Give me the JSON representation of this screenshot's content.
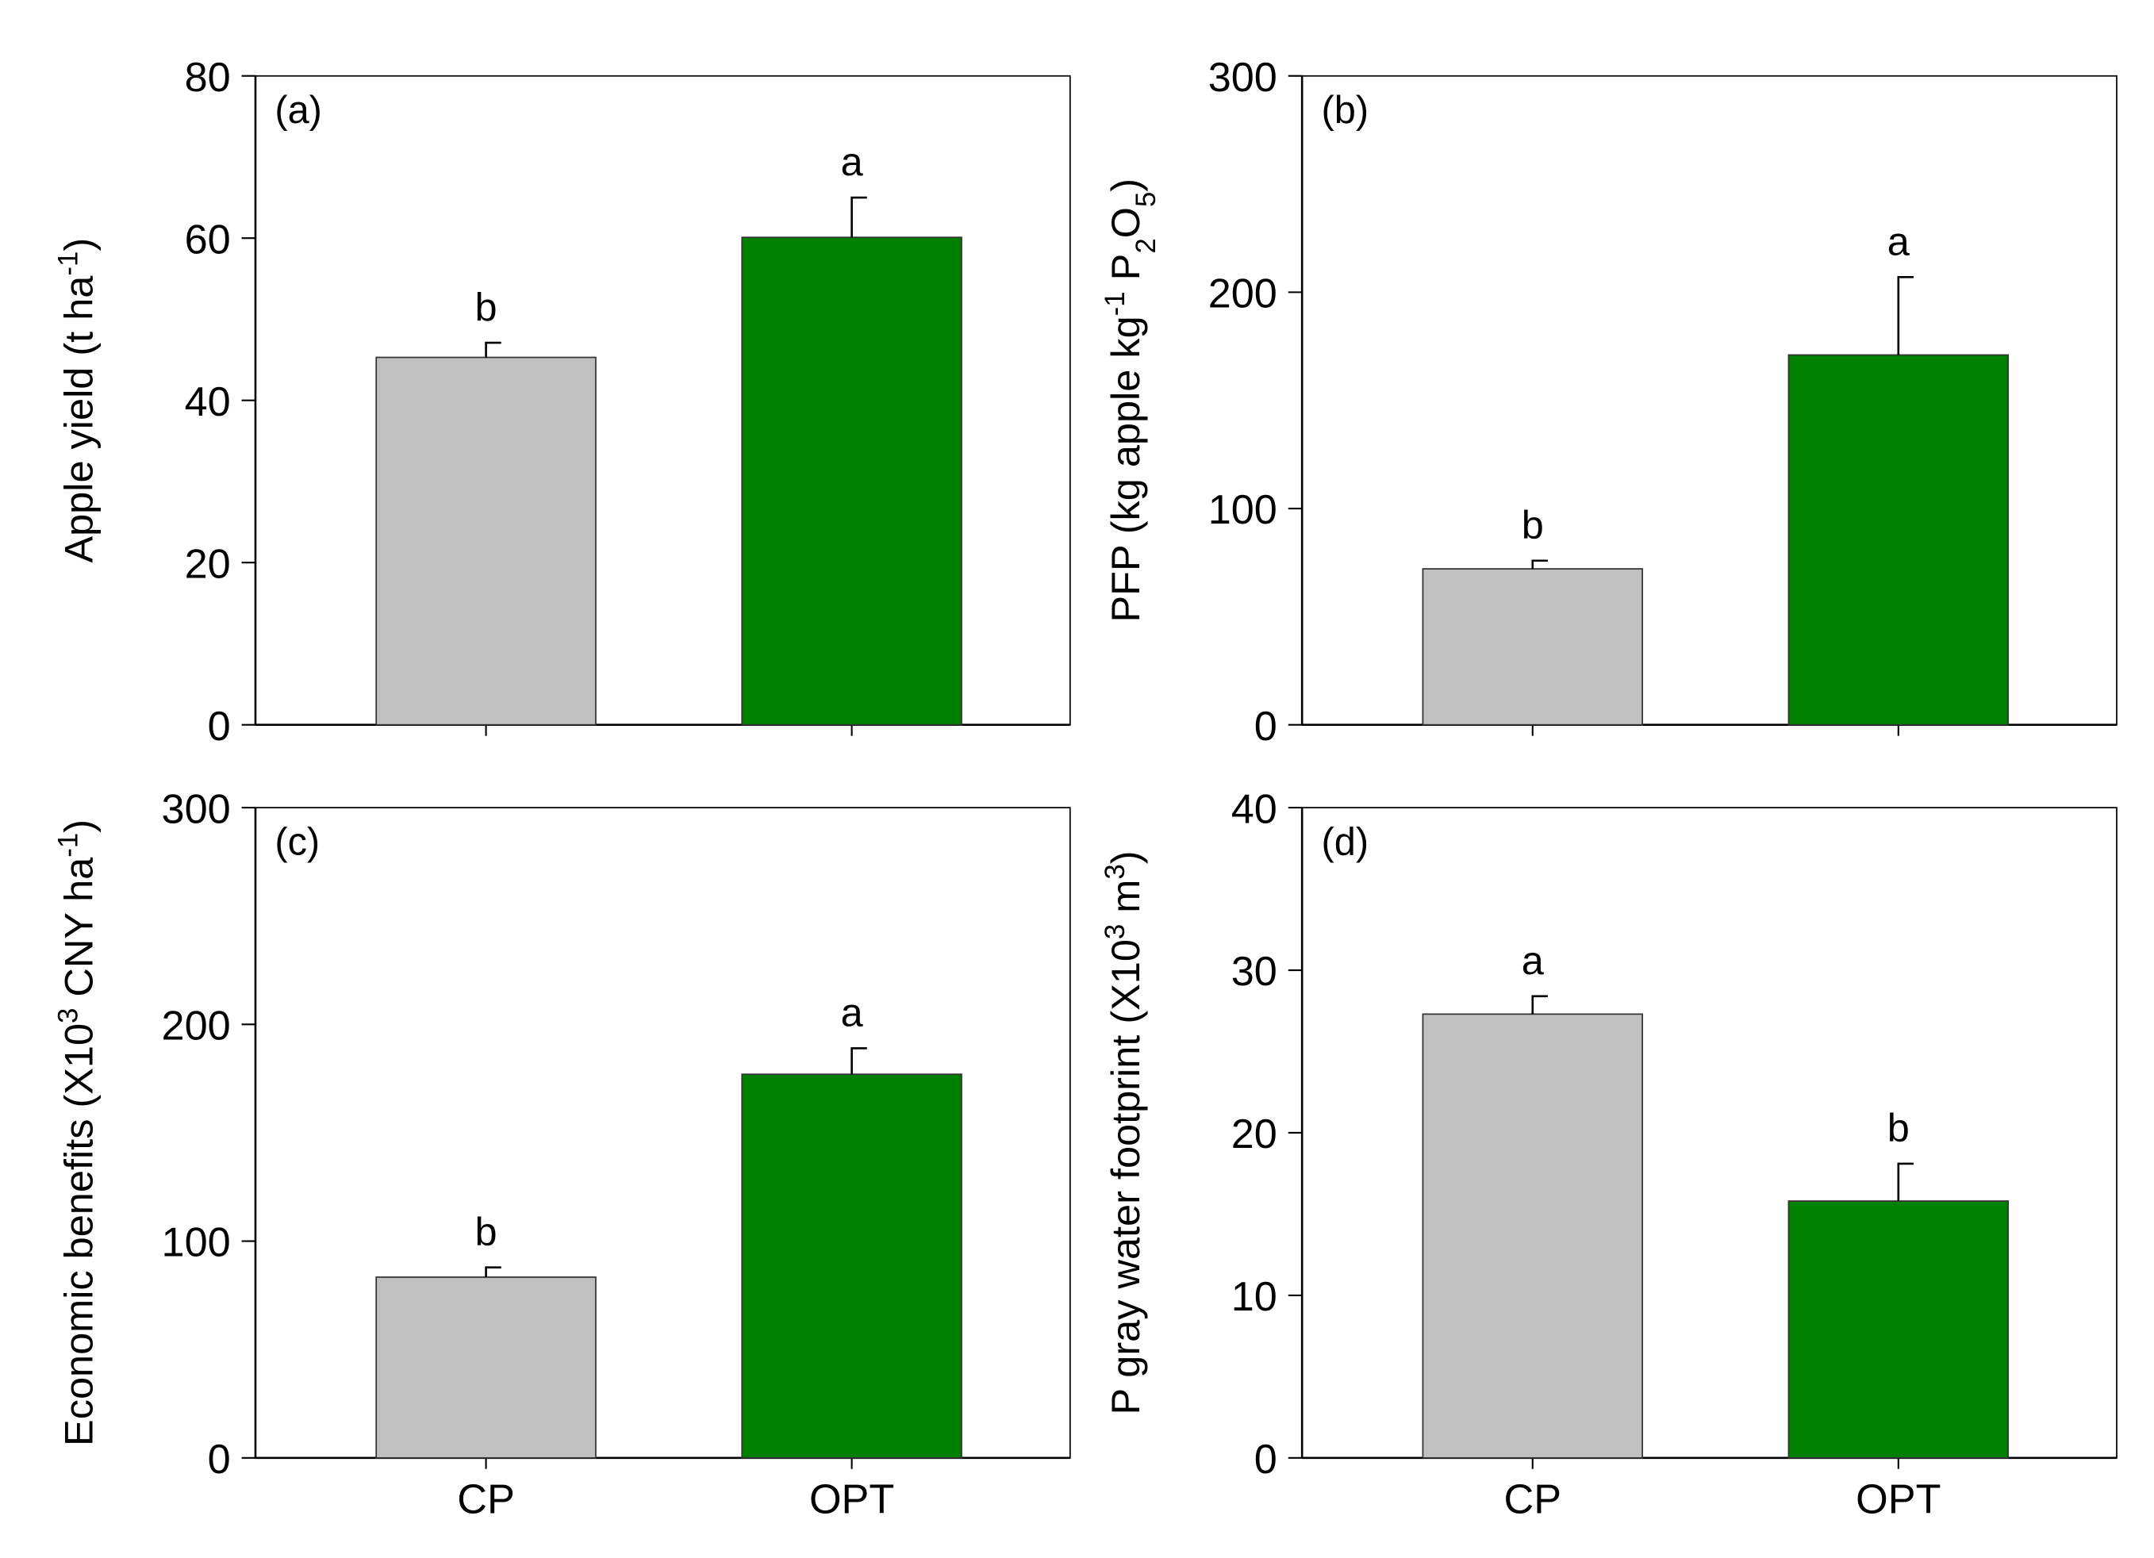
{
  "chart_data": [
    {
      "type": "bar",
      "panel_label": "(a)",
      "ylabel": [
        {
          "text": "Apple yield (t ha"
        },
        {
          "text": "-1",
          "shift": "sup"
        },
        {
          "text": ")"
        }
      ],
      "values": [
        45.3,
        60.1
      ],
      "errors": [
        1.8,
        4.9
      ],
      "annotations": [
        "b",
        "a"
      ],
      "colors": [
        "#c0c0c0",
        "#008000"
      ],
      "ylim": [
        0,
        80
      ],
      "yticks": [
        0,
        20,
        40,
        60,
        80
      ]
    },
    {
      "type": "bar",
      "panel_label": "(b)",
      "ylabel": [
        {
          "text": "PFP (kg apple kg"
        },
        {
          "text": "-1",
          "shift": "sup"
        },
        {
          "text": " P"
        },
        {
          "text": "2",
          "shift": "sub"
        },
        {
          "text": "O"
        },
        {
          "text": "5",
          "shift": "sub"
        },
        {
          "text": ")"
        }
      ],
      "values": [
        72.1,
        171
      ],
      "errors": [
        3.8,
        36
      ],
      "annotations": [
        "b",
        "a"
      ],
      "colors": [
        "#c0c0c0",
        "#008000"
      ],
      "ylim": [
        0,
        300
      ],
      "yticks": [
        0,
        100,
        200,
        300
      ]
    },
    {
      "type": "bar",
      "panel_label": "(c)",
      "ylabel": [
        {
          "text": "Economic benefits (X10"
        },
        {
          "text": "3",
          "shift": "sup"
        },
        {
          "text": " CNY ha"
        },
        {
          "text": "-1",
          "shift": "sup"
        },
        {
          "text": ")"
        }
      ],
      "categories": [
        "CP",
        "OPT"
      ],
      "values": [
        83.4,
        177
      ],
      "errors": [
        4.5,
        12
      ],
      "annotations": [
        "b",
        "a"
      ],
      "colors": [
        "#c0c0c0",
        "#008000"
      ],
      "ylim": [
        0,
        300
      ],
      "yticks": [
        0,
        100,
        200,
        300
      ]
    },
    {
      "type": "bar",
      "panel_label": "(d)",
      "ylabel": [
        {
          "text": "P gray water footprint (X10"
        },
        {
          "text": "3",
          "shift": "sup"
        },
        {
          "text": " m"
        },
        {
          "text": "3",
          "shift": "sup"
        },
        {
          "text": ")"
        }
      ],
      "categories": [
        "CP",
        "OPT"
      ],
      "values": [
        27.3,
        15.8
      ],
      "errors": [
        1.1,
        2.3
      ],
      "annotations": [
        "a",
        "b"
      ],
      "colors": [
        "#c0c0c0",
        "#008000"
      ],
      "ylim": [
        0,
        40
      ],
      "yticks": [
        0,
        10,
        20,
        30,
        40
      ]
    }
  ]
}
